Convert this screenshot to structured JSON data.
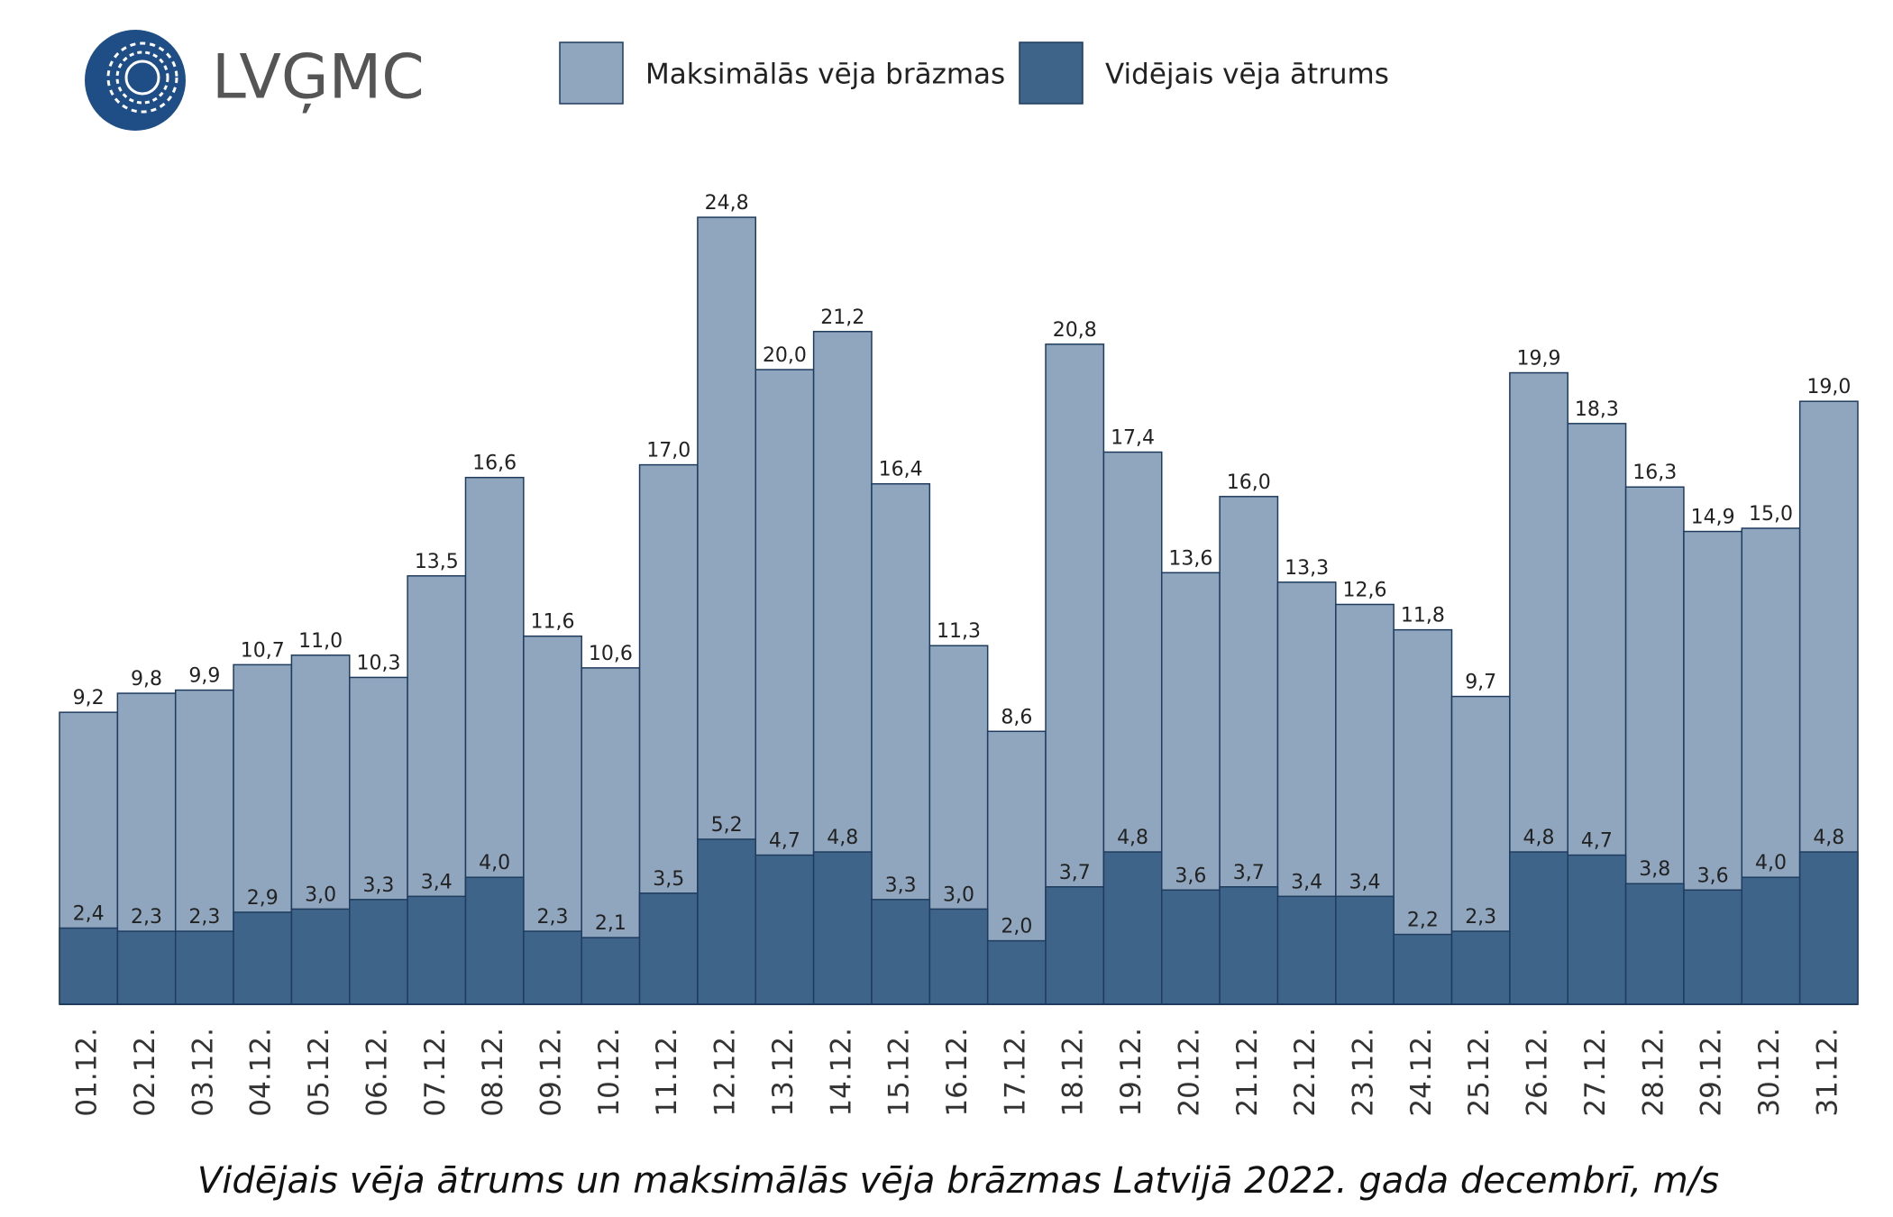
{
  "logo": "LVĢMC",
  "chart_data": {
    "type": "bar",
    "overlap": true,
    "title": "Vidējais vēja ātrums un maksimālās vēja brāzmas Latvijā 2022. gada decembrī, m/s",
    "categories": [
      "01.12.",
      "02.12.",
      "03.12.",
      "04.12.",
      "05.12.",
      "06.12.",
      "07.12.",
      "08.12.",
      "09.12.",
      "10.12.",
      "11.12.",
      "12.12.",
      "13.12.",
      "14.12.",
      "15.12.",
      "16.12.",
      "17.12.",
      "18.12.",
      "19.12.",
      "20.12.",
      "21.12.",
      "22.12.",
      "23.12.",
      "24.12.",
      "25.12.",
      "26.12.",
      "27.12.",
      "28.12.",
      "29.12.",
      "30.12.",
      "31.12."
    ],
    "series": [
      {
        "name": "Maksimālās vēja brāzmas",
        "color": "#8fa6be",
        "values": [
          9.2,
          9.8,
          9.9,
          10.7,
          11.0,
          10.3,
          13.5,
          16.6,
          11.6,
          10.6,
          17.0,
          24.8,
          20.0,
          21.2,
          16.4,
          11.3,
          8.6,
          20.8,
          17.4,
          13.6,
          16.0,
          13.3,
          12.6,
          11.8,
          9.7,
          19.9,
          18.3,
          16.3,
          14.9,
          15.0,
          19.0
        ],
        "value_labels": [
          "9,2",
          "9,8",
          "9,9",
          "10,7",
          "11,0",
          "10,3",
          "13,5",
          "16,6",
          "11,6",
          "10,6",
          "17,0",
          "24,8",
          "20,0",
          "21,2",
          "16,4",
          "11,3",
          "8,6",
          "20,8",
          "17,4",
          "13,6",
          "16,0",
          "13,3",
          "12,6",
          "11,8",
          "9,7",
          "19,9",
          "18,3",
          "16,3",
          "14,9",
          "15,0",
          "19,0"
        ]
      },
      {
        "name": "Vidējais vēja ātrums",
        "color": "#3f6489",
        "values": [
          2.4,
          2.3,
          2.3,
          2.9,
          3.0,
          3.3,
          3.4,
          4.0,
          2.3,
          2.1,
          3.5,
          5.2,
          4.7,
          4.8,
          3.3,
          3.0,
          2.0,
          3.7,
          4.8,
          3.6,
          3.7,
          3.4,
          3.4,
          2.2,
          2.3,
          4.8,
          4.7,
          3.8,
          3.6,
          4.0,
          4.8
        ],
        "value_labels": [
          "2,4",
          "2,3",
          "2,3",
          "2,9",
          "3,0",
          "3,3",
          "3,4",
          "4,0",
          "2,3",
          "2,1",
          "3,5",
          "5,2",
          "4,7",
          "4,8",
          "3,3",
          "3,0",
          "2,0",
          "3,7",
          "4,8",
          "3,6",
          "3,7",
          "3,4",
          "3,4",
          "2,2",
          "2,3",
          "4,8",
          "4,7",
          "3,8",
          "3,6",
          "4,0",
          "4,8"
        ]
      }
    ]
  }
}
